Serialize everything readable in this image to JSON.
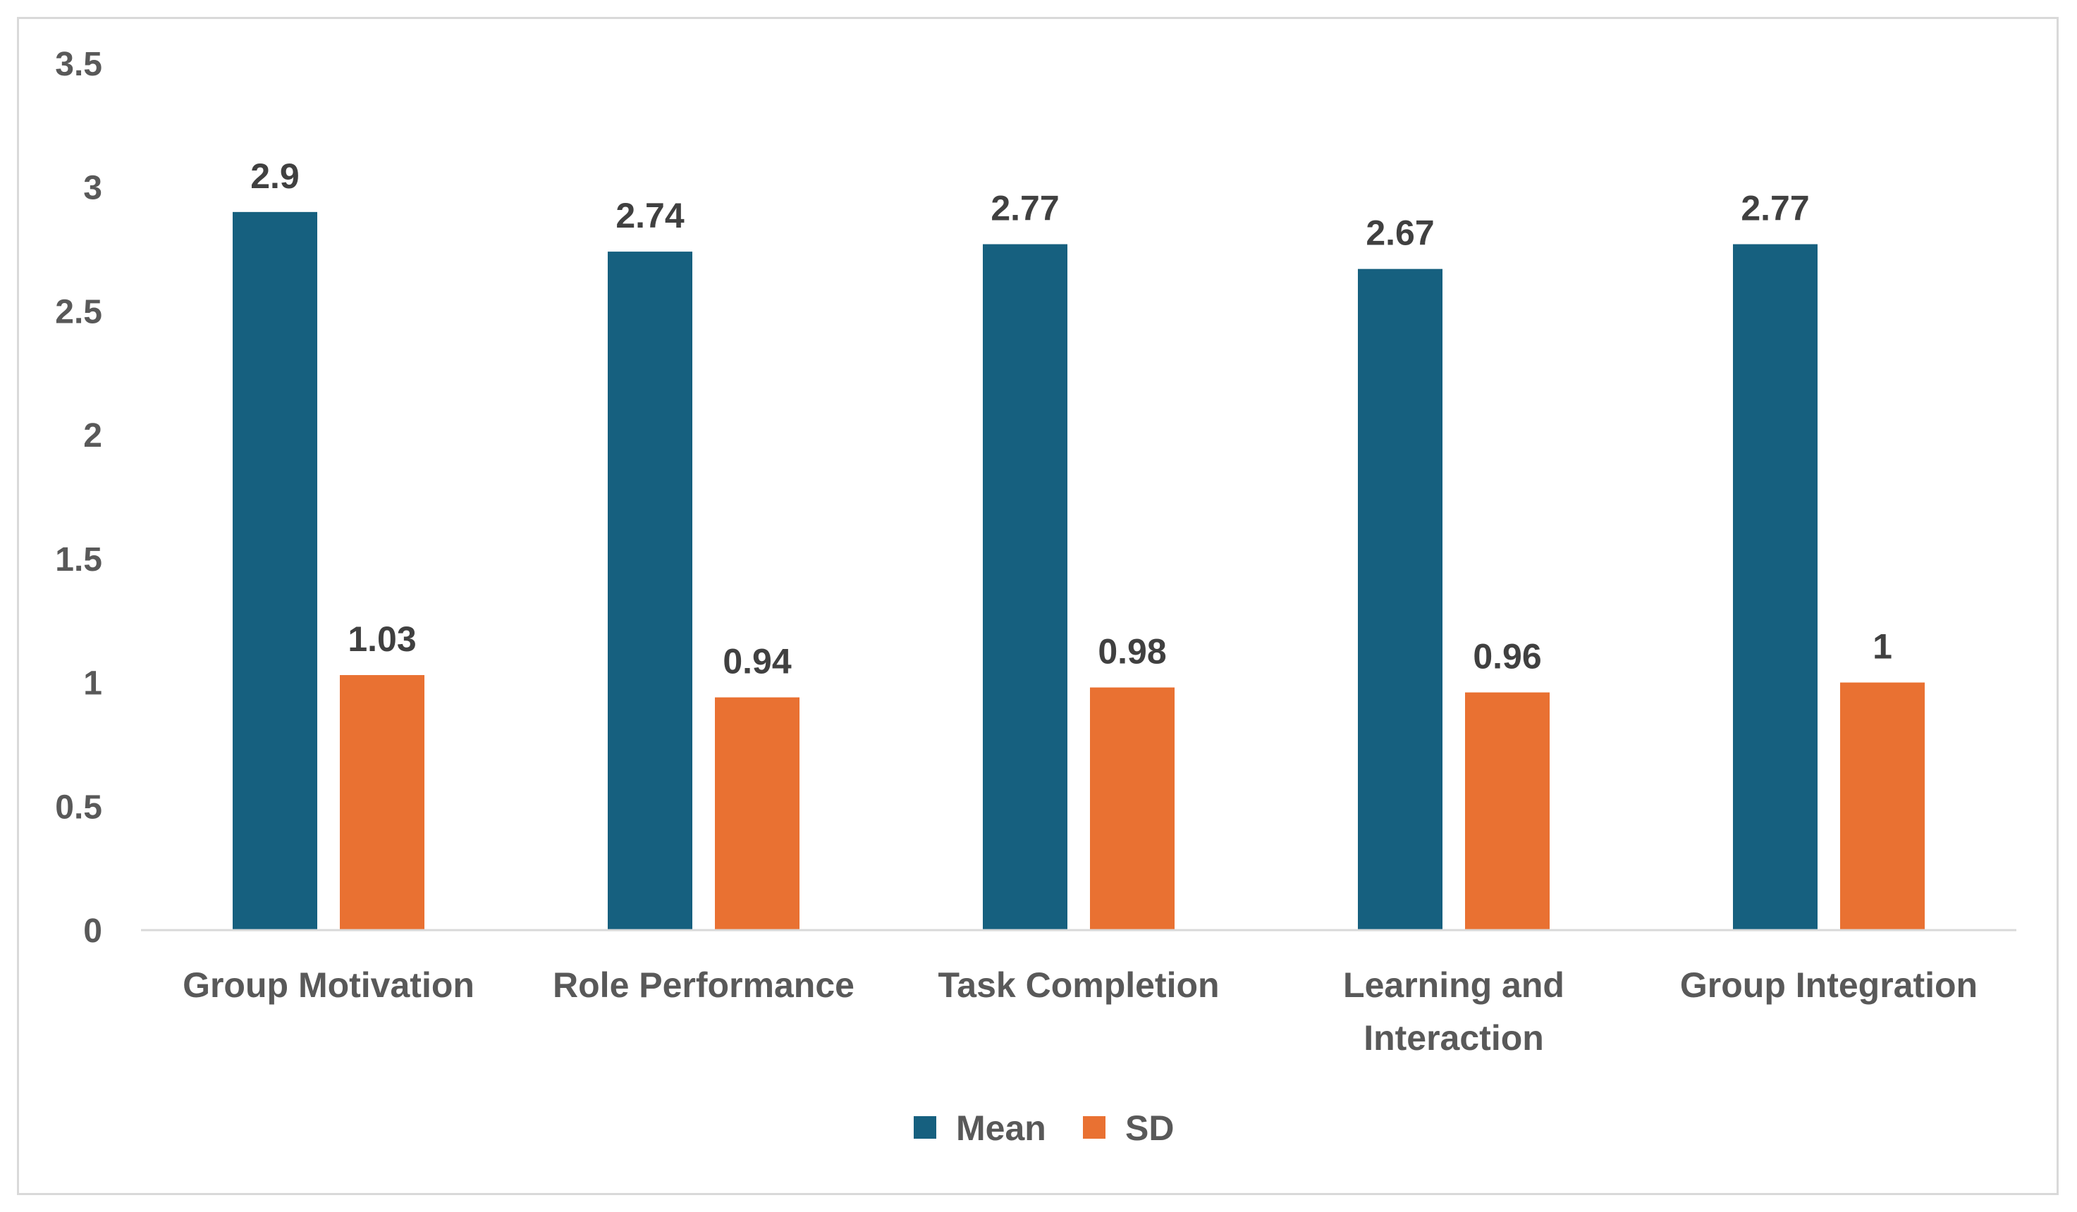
{
  "colors": {
    "mean": "#16607F",
    "sd": "#E97132",
    "axis": "#d9d9d9",
    "tick_text": "#595959",
    "data_text": "#404040"
  },
  "chart_data": {
    "type": "bar",
    "title": "",
    "xlabel": "",
    "ylabel": "",
    "ylim": [
      0,
      3.5
    ],
    "yticks": [
      "0",
      "0.5",
      "1",
      "1.5",
      "2",
      "2.5",
      "3",
      "3.5"
    ],
    "categories": [
      [
        "Group Motivation"
      ],
      [
        "Role Performance"
      ],
      [
        "Task Completion"
      ],
      [
        "Learning and",
        "Interaction"
      ],
      [
        "Group Integration"
      ]
    ],
    "series": [
      {
        "name": "Mean",
        "values": [
          2.9,
          2.74,
          2.77,
          2.67,
          2.77
        ],
        "labels": [
          "2.9",
          "2.74",
          "2.77",
          "2.67",
          "2.77"
        ]
      },
      {
        "name": "SD",
        "values": [
          1.03,
          0.94,
          0.98,
          0.96,
          1
        ],
        "labels": [
          "1.03",
          "0.94",
          "0.98",
          "0.96",
          "1"
        ]
      }
    ],
    "legend_position": "bottom",
    "grid": false
  }
}
